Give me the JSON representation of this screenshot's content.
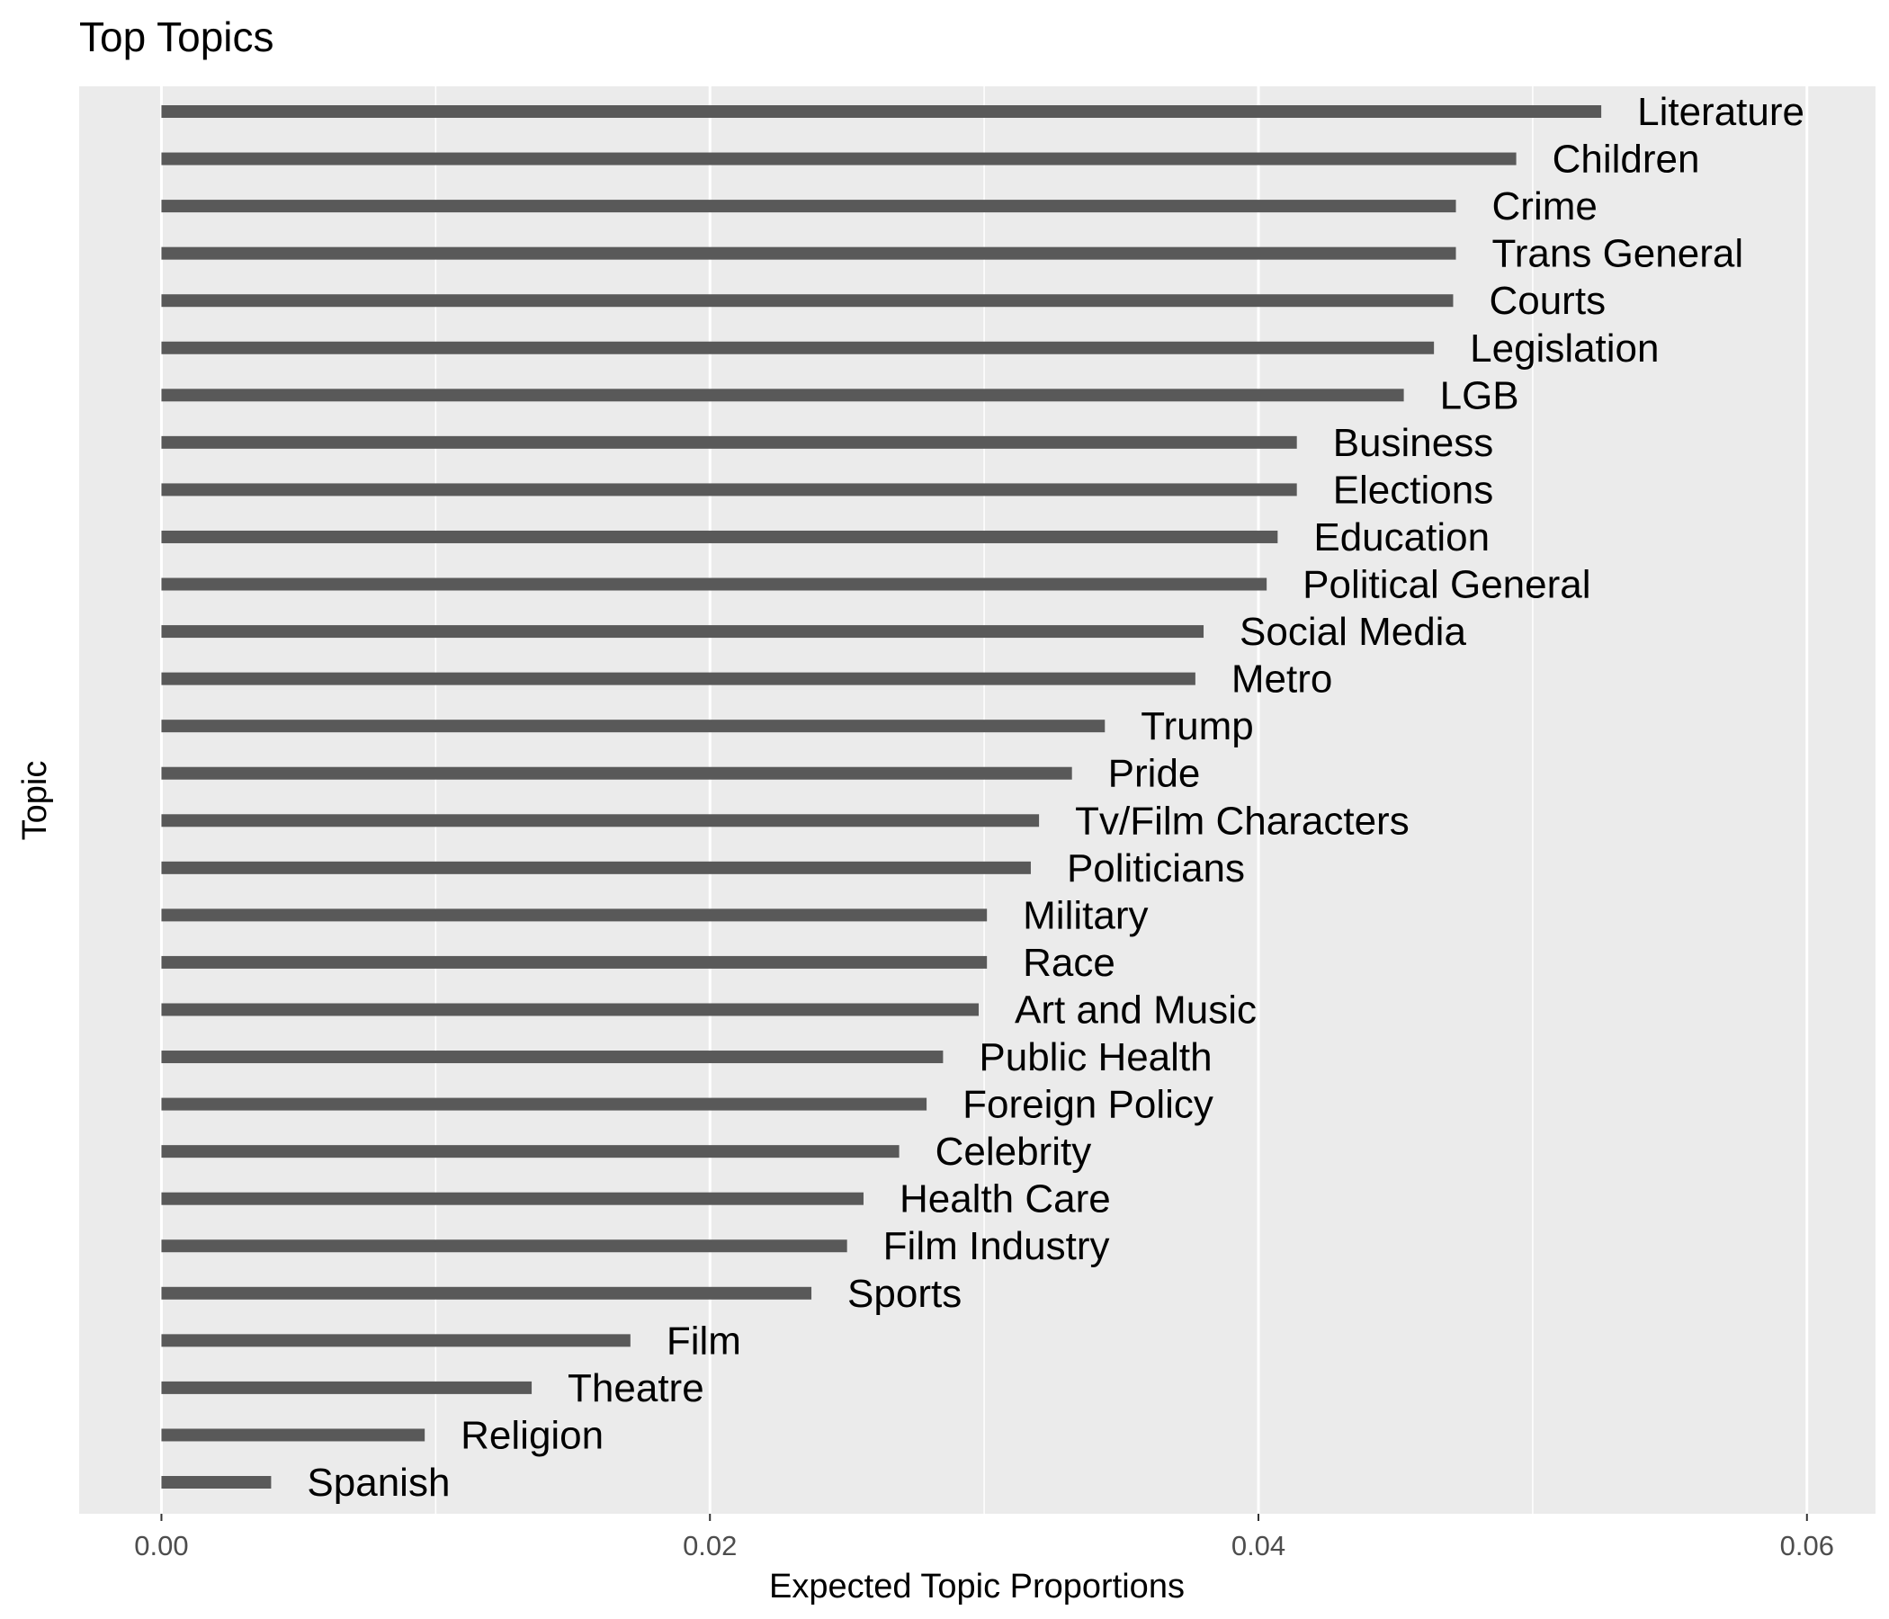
{
  "chart_data": {
    "type": "bar",
    "orientation": "horizontal",
    "title": "Top Topics",
    "xlabel": "Expected Topic Proportions",
    "ylabel": "Topic",
    "xlim": [
      -0.003,
      0.0625
    ],
    "xticks": [
      0.0,
      0.02,
      0.04,
      0.06
    ],
    "xtick_labels": [
      "0.00",
      "0.02",
      "0.04",
      "0.06"
    ],
    "grid": true,
    "legend": "none",
    "bar_color": "#595959",
    "panel_color": "#ebebeb",
    "grid_color": "#ffffff",
    "categories": [
      "Literature",
      "Children",
      "Crime",
      "Trans General",
      "Courts",
      "Legislation",
      "LGB",
      "Business",
      "Elections",
      "Education",
      "Political General",
      "Social Media",
      "Metro",
      "Trump",
      "Pride",
      "Tv/Film Characters",
      "Politicians",
      "Military",
      "Race",
      "Art and Music",
      "Public Health",
      "Foreign Policy",
      "Celebrity",
      "Health Care",
      "Film Industry",
      "Sports",
      "Film",
      "Theatre",
      "Religion",
      "Spanish"
    ],
    "values": [
      0.0525,
      0.0494,
      0.0472,
      0.0472,
      0.0471,
      0.0464,
      0.0453,
      0.0414,
      0.0414,
      0.0407,
      0.0403,
      0.038,
      0.0377,
      0.0344,
      0.0332,
      0.032,
      0.0317,
      0.0301,
      0.0301,
      0.0298,
      0.0285,
      0.0279,
      0.0269,
      0.0256,
      0.025,
      0.0237,
      0.0171,
      0.0135,
      0.0096,
      0.004
    ]
  }
}
